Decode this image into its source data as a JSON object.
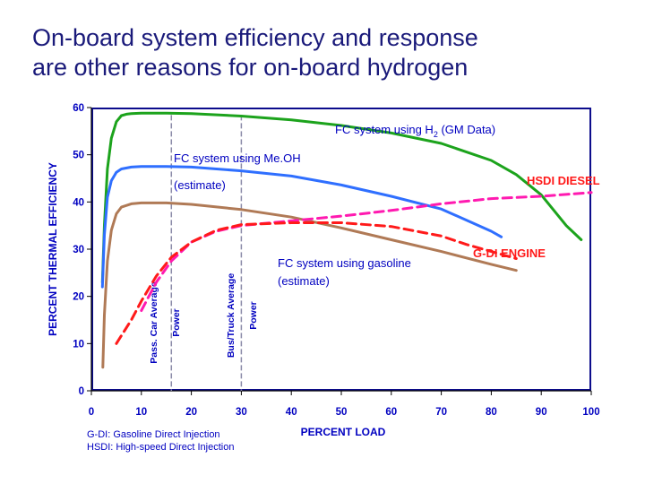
{
  "slide": {
    "title_lines": [
      "On-board system efficiency and response",
      "are other reasons for on-board hydrogen"
    ],
    "footnotes": [
      "G-DI: Gasoline Direct Injection",
      "HSDI: High-speed Direct Injection"
    ]
  },
  "colors": {
    "background": "#ffffff",
    "plot_background": "#0c0c8c",
    "text": "#0000c0",
    "title": "#1a1a7a",
    "fc_h2": "#1ca31c",
    "fc_meoh": "#2f6fff",
    "fc_gasoline": "#b07a56",
    "hsdi_diesel": "#ff1ab0",
    "gdi_engine": "#ff1a1a",
    "reference_lines": "#8a8aa8"
  },
  "chart_data": {
    "type": "line",
    "title": "",
    "xlabel": "PERCENT LOAD",
    "ylabel": "PERCENT THERMAL EFFICIENCY",
    "xlim": [
      0,
      100
    ],
    "ylim": [
      0,
      60
    ],
    "xticks": [
      "0",
      "10",
      "20",
      "30",
      "40",
      "50",
      "60",
      "70",
      "80",
      "90",
      "100"
    ],
    "yticks": [
      "0",
      "10",
      "20",
      "30",
      "40",
      "50",
      "60"
    ],
    "grid": false,
    "reference_lines": [
      {
        "x": 16,
        "label": [
          "Pass. Car Average",
          "Power"
        ]
      },
      {
        "x": 30,
        "label": [
          "Bus/Truck Average",
          "Power"
        ]
      }
    ],
    "series": [
      {
        "key": "fc_h2",
        "label_parts": [
          "FC system using H",
          "2",
          " (GM Data)"
        ],
        "color_key": "fc_h2",
        "style": "solid",
        "x": [
          2.2,
          2.6,
          3.2,
          4,
          5,
          6,
          7,
          8,
          10,
          15,
          20,
          30,
          40,
          50,
          60,
          70,
          80,
          85,
          90,
          95,
          98
        ],
        "y": [
          23,
          35,
          47,
          53.5,
          57,
          58.3,
          58.6,
          58.7,
          58.8,
          58.8,
          58.7,
          58.2,
          57.4,
          56.2,
          54.6,
          52.4,
          48.8,
          45.8,
          41.5,
          35,
          32
        ]
      },
      {
        "key": "fc_meoh",
        "label": "FC system using Me.OH",
        "color_key": "fc_meoh",
        "style": "solid",
        "x": [
          2.2,
          2.6,
          3.2,
          4,
          5,
          6,
          8,
          10,
          15,
          20,
          30,
          40,
          50,
          60,
          70,
          80,
          82
        ],
        "y": [
          22,
          33,
          41,
          44.5,
          46.3,
          47,
          47.4,
          47.5,
          47.5,
          47.4,
          46.6,
          45.5,
          43.6,
          41.2,
          38.5,
          33.8,
          32.6
        ]
      },
      {
        "key": "fc_meoh_estimate",
        "label": "(estimate)",
        "color_key": "fc_meoh",
        "style": "annotation"
      },
      {
        "key": "fc_gasoline",
        "label_lines": [
          "FC system using gasoline",
          "(estimate)"
        ],
        "color_key": "fc_gasoline",
        "style": "solid",
        "x": [
          2.3,
          2.6,
          3.2,
          4,
          5,
          6,
          8,
          10,
          15,
          20,
          30,
          40,
          50,
          60,
          70,
          80,
          85
        ],
        "y": [
          5,
          16,
          27.5,
          34,
          37.5,
          38.9,
          39.6,
          39.8,
          39.8,
          39.5,
          38.4,
          36.8,
          34.5,
          32,
          29.5,
          26.8,
          25.5
        ]
      },
      {
        "key": "hsdi_diesel",
        "label": "HSDI DIESEL",
        "color_key": "hsdi_diesel",
        "style": "dashed",
        "x": [
          10,
          13,
          16,
          20,
          25,
          30,
          40,
          50,
          60,
          70,
          80,
          90,
          95,
          100
        ],
        "y": [
          17,
          23,
          27.5,
          31.5,
          33.8,
          35,
          36,
          37,
          38.2,
          39.6,
          40.7,
          41.2,
          41.6,
          42
        ]
      },
      {
        "key": "gdi_engine",
        "label": "G-DI ENGINE",
        "color_key": "gdi_engine",
        "style": "dashed",
        "x": [
          5,
          8,
          10,
          13,
          16,
          20,
          25,
          30,
          40,
          50,
          60,
          70,
          75,
          80,
          85
        ],
        "y": [
          10,
          15,
          19,
          24.3,
          28.3,
          31.5,
          34,
          35.2,
          35.6,
          35.6,
          34.8,
          32.8,
          31,
          29.5,
          28
        ]
      }
    ]
  }
}
